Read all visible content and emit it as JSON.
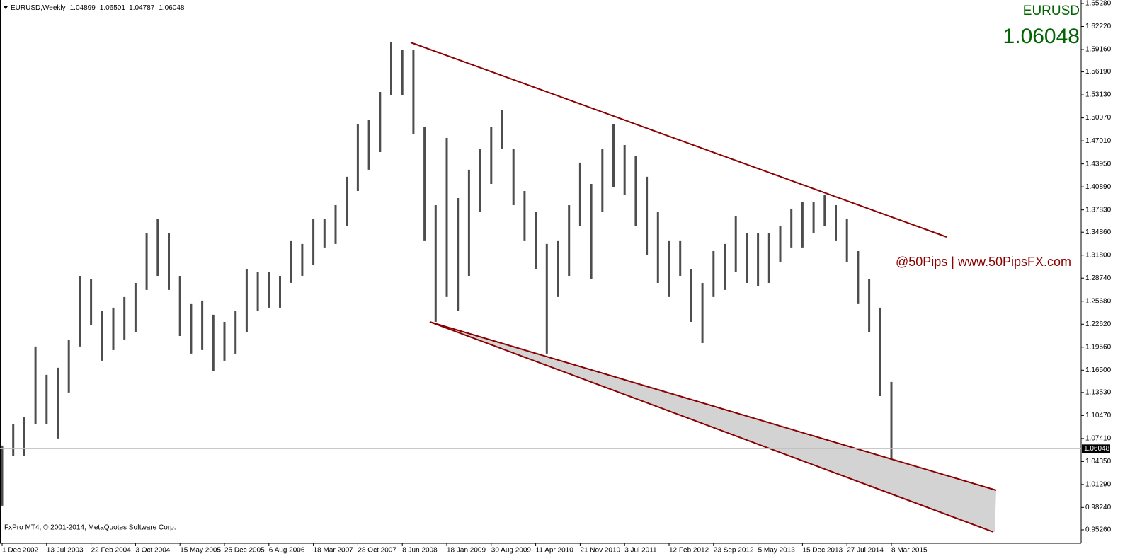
{
  "chart_data": {
    "type": "hl-bars",
    "symbol_period": "EURUSD,Weekly",
    "header_ohlc": [
      1.04899,
      1.06501,
      1.04787,
      1.06048
    ],
    "symbol": "EURUSD",
    "last_price": 1.06048,
    "watermark": "@50Pips | www.50PipsFX.com",
    "copyright": "FxPro MT4, © 2001-2014, MetaQuotes Software Corp.",
    "bar_color": "#4d4d4d",
    "categories": [
      "1 Dec 2002",
      null,
      null,
      null,
      "13 Jul 2003",
      null,
      null,
      null,
      "22 Feb 2004",
      null,
      null,
      null,
      "3 Oct 2004",
      null,
      null,
      null,
      "15 May 2005",
      null,
      null,
      null,
      "25 Dec 2005",
      null,
      null,
      null,
      "6 Aug 2006",
      null,
      null,
      null,
      "18 Mar 2007",
      null,
      null,
      null,
      "28 Oct 2007",
      null,
      null,
      null,
      "8 Jun 2008",
      null,
      null,
      null,
      "18 Jan 2009",
      null,
      null,
      null,
      "30 Aug 2009",
      null,
      null,
      null,
      "11 Apr 2010",
      null,
      null,
      null,
      "21 Nov 2010",
      null,
      null,
      null,
      "3 Jul 2011",
      null,
      null,
      null,
      "12 Feb 2012",
      null,
      null,
      null,
      "23 Sep 2012",
      null,
      null,
      null,
      "5 May 2013",
      null,
      null,
      null,
      "15 Dec 2013",
      null,
      null,
      null,
      "27 Jul 2014",
      null,
      null,
      null,
      "8 Mar 2015"
    ],
    "high": [
      1.0647,
      1.0929,
      1.1023,
      1.1964,
      1.1588,
      1.1682,
      1.2058,
      1.2905,
      1.2858,
      1.2435,
      1.2482,
      1.2623,
      1.2811,
      1.347,
      1.3658,
      1.347,
      1.2905,
      1.2529,
      1.2576,
      1.2388,
      1.2293,
      1.2435,
      1.2999,
      1.2952,
      1.2952,
      1.2905,
      1.3376,
      1.3329,
      1.3658,
      1.3658,
      1.3846,
      1.4223,
      1.4928,
      1.4975,
      1.5352,
      1.601,
      1.5916,
      1.5916,
      1.4881,
      1.3846,
      1.474,
      1.394,
      1.4317,
      1.4599,
      1.4881,
      1.5116,
      1.4599,
      1.4034,
      1.3752,
      1.3329,
      1.3376,
      1.3846,
      1.4411,
      1.4128,
      1.4599,
      1.4928,
      1.4646,
      1.4505,
      1.4223,
      1.3752,
      1.3376,
      1.3376,
      1.2999,
      1.2811,
      1.3234,
      1.3329,
      1.3705,
      1.347,
      1.347,
      1.347,
      1.3564,
      1.3799,
      1.3893,
      1.3893,
      1.3987,
      1.3846,
      1.3658,
      1.3234,
      1.2858,
      1.2482,
      1.1494
    ],
    "low": [
      0.9847,
      1.0505,
      1.0505,
      1.0929,
      1.0929,
      1.0741,
      1.1353,
      1.1964,
      1.2246,
      1.1776,
      1.1917,
      1.2058,
      1.2152,
      1.2717,
      1.2905,
      1.2717,
      1.2105,
      1.187,
      1.1917,
      1.1635,
      1.1776,
      1.187,
      1.2152,
      1.2435,
      1.2482,
      1.2482,
      1.2811,
      1.2905,
      1.3046,
      1.3282,
      1.3329,
      1.3564,
      1.4034,
      1.4317,
      1.4552,
      1.5305,
      1.5305,
      1.4787,
      1.3376,
      1.2293,
      1.2623,
      1.2435,
      1.2905,
      1.3752,
      1.4128,
      1.4599,
      1.3846,
      1.3376,
      1.2999,
      1.187,
      1.2623,
      1.2905,
      1.3564,
      1.2858,
      1.3752,
      1.4081,
      1.3987,
      1.3564,
      1.3187,
      1.2811,
      1.2623,
      1.2905,
      1.2293,
      1.2011,
      1.2623,
      1.2717,
      1.2952,
      1.2811,
      1.2764,
      1.2811,
      1.3093,
      1.3282,
      1.3282,
      1.347,
      1.3564,
      1.3376,
      1.3093,
      1.2529,
      1.2152,
      1.1305,
      1.0458
    ],
    "ylim": [
      0.9347,
      1.6575
    ],
    "yticks": [
      {
        "value": 1.6528,
        "label": "1.65280"
      },
      {
        "value": 1.6222,
        "label": "1.62220"
      },
      {
        "value": 1.5916,
        "label": "1.59160"
      },
      {
        "value": 1.5619,
        "label": "1.56190"
      },
      {
        "value": 1.5313,
        "label": "1.53130"
      },
      {
        "value": 1.5007,
        "label": "1.50070"
      },
      {
        "value": 1.4701,
        "label": "1.47010"
      },
      {
        "value": 1.4395,
        "label": "1.43950"
      },
      {
        "value": 1.4089,
        "label": "1.40890"
      },
      {
        "value": 1.3783,
        "label": "1.37830"
      },
      {
        "value": 1.3486,
        "label": "1.34860"
      },
      {
        "value": 1.318,
        "label": "1.31800"
      },
      {
        "value": 1.2874,
        "label": "1.28740"
      },
      {
        "value": 1.2568,
        "label": "1.25680"
      },
      {
        "value": 1.2262,
        "label": "1.22620"
      },
      {
        "value": 1.1956,
        "label": "1.19560"
      },
      {
        "value": 1.165,
        "label": "1.16500"
      },
      {
        "value": 1.1353,
        "label": "1.13530"
      },
      {
        "value": 1.1047,
        "label": "1.10470"
      },
      {
        "value": 1.0741,
        "label": "1.07410"
      },
      {
        "value": 1.0435,
        "label": "1.04350"
      },
      {
        "value": 1.0129,
        "label": "1.01290"
      },
      {
        "value": 0.9824,
        "label": "0.98240"
      },
      {
        "value": 0.9526,
        "label": "0.95260"
      }
    ]
  }
}
